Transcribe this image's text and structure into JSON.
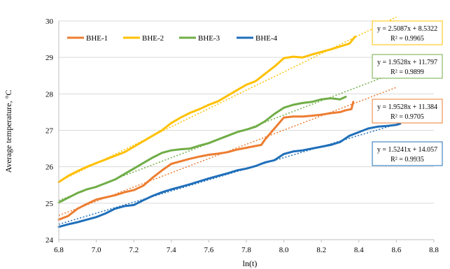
{
  "chart_data": {
    "type": "line",
    "xlabel": "ln(t)",
    "ylabel": "Average temperature, °C",
    "xlim": [
      6.8,
      8.8
    ],
    "ylim": [
      24,
      30
    ],
    "x_ticks": [
      "6.8",
      "7.0",
      "7.2",
      "7.4",
      "7.6",
      "7.8",
      "8.0",
      "8.2",
      "8.4",
      "8.6",
      "8.8"
    ],
    "y_ticks": [
      "24",
      "25",
      "26",
      "27",
      "28",
      "29",
      "30"
    ],
    "grid": "horizontal",
    "legend_position": "top-left",
    "series": [
      {
        "name": "BHE-1",
        "color": "#ED7D31",
        "x": [
          6.8,
          6.85,
          6.9,
          6.95,
          7.0,
          7.05,
          7.1,
          7.15,
          7.2,
          7.25,
          7.3,
          7.35,
          7.4,
          7.45,
          7.5,
          7.55,
          7.6,
          7.65,
          7.7,
          7.75,
          7.8,
          7.85,
          7.88,
          7.9,
          7.95,
          8.0,
          8.05,
          8.1,
          8.15,
          8.2,
          8.25,
          8.3,
          8.33,
          8.36,
          8.37
        ],
        "y": [
          24.55,
          24.65,
          24.85,
          24.98,
          25.1,
          25.16,
          25.22,
          25.3,
          25.36,
          25.48,
          25.7,
          25.9,
          26.08,
          26.15,
          26.22,
          26.28,
          26.33,
          26.36,
          26.4,
          26.47,
          26.52,
          26.57,
          26.6,
          26.75,
          27.05,
          27.35,
          27.38,
          27.38,
          27.4,
          27.43,
          27.47,
          27.5,
          27.55,
          27.58,
          27.78
        ],
        "trendline": {
          "slope": 1.9528,
          "intercept": 11.384,
          "r2": 0.9705,
          "x_range": [
            6.8,
            8.6
          ]
        }
      },
      {
        "name": "BHE-2",
        "color": "#FFC000",
        "x": [
          6.8,
          6.85,
          6.9,
          6.95,
          7.0,
          7.05,
          7.1,
          7.15,
          7.2,
          7.25,
          7.3,
          7.35,
          7.4,
          7.45,
          7.5,
          7.55,
          7.6,
          7.65,
          7.7,
          7.75,
          7.8,
          7.85,
          7.9,
          7.95,
          8.0,
          8.05,
          8.1,
          8.15,
          8.2,
          8.25,
          8.3,
          8.35,
          8.38
        ],
        "y": [
          25.58,
          25.75,
          25.88,
          26.0,
          26.1,
          26.2,
          26.3,
          26.4,
          26.55,
          26.7,
          26.85,
          27.0,
          27.2,
          27.35,
          27.48,
          27.58,
          27.7,
          27.8,
          27.95,
          28.1,
          28.25,
          28.35,
          28.55,
          28.75,
          28.98,
          29.02,
          29.0,
          29.08,
          29.15,
          29.22,
          29.3,
          29.38,
          29.57
        ],
        "trendline": {
          "slope": 2.5087,
          "intercept": 8.5322,
          "r2": 0.9965,
          "x_range": [
            6.8,
            8.6
          ]
        }
      },
      {
        "name": "BHE-3",
        "color": "#70AD47",
        "x": [
          6.8,
          6.85,
          6.9,
          6.95,
          7.0,
          7.05,
          7.1,
          7.15,
          7.2,
          7.25,
          7.3,
          7.35,
          7.4,
          7.45,
          7.5,
          7.55,
          7.6,
          7.65,
          7.7,
          7.75,
          7.8,
          7.85,
          7.9,
          7.95,
          8.0,
          8.05,
          8.1,
          8.15,
          8.2,
          8.25,
          8.3,
          8.33
        ],
        "y": [
          25.02,
          25.15,
          25.28,
          25.38,
          25.45,
          25.55,
          25.65,
          25.8,
          25.95,
          26.1,
          26.25,
          26.38,
          26.45,
          26.48,
          26.5,
          26.58,
          26.65,
          26.75,
          26.85,
          26.95,
          27.02,
          27.1,
          27.25,
          27.45,
          27.62,
          27.7,
          27.75,
          27.78,
          27.85,
          27.88,
          27.85,
          27.92
        ],
        "trendline": {
          "slope": 1.9528,
          "intercept": 11.797,
          "r2": 0.9899,
          "x_range": [
            6.8,
            8.6
          ]
        }
      },
      {
        "name": "BHE-4",
        "color": "#1F6FBA",
        "x": [
          6.8,
          6.85,
          6.9,
          6.95,
          7.0,
          7.05,
          7.1,
          7.15,
          7.2,
          7.25,
          7.3,
          7.35,
          7.4,
          7.45,
          7.5,
          7.55,
          7.6,
          7.65,
          7.7,
          7.75,
          7.8,
          7.85,
          7.9,
          7.95,
          8.0,
          8.05,
          8.1,
          8.15,
          8.2,
          8.25,
          8.3,
          8.35,
          8.4,
          8.45,
          8.5,
          8.55,
          8.6,
          8.62
        ],
        "y": [
          24.35,
          24.42,
          24.48,
          24.55,
          24.62,
          24.72,
          24.85,
          24.92,
          24.95,
          25.08,
          25.2,
          25.3,
          25.38,
          25.45,
          25.52,
          25.6,
          25.68,
          25.75,
          25.82,
          25.9,
          25.95,
          26.02,
          26.12,
          26.18,
          26.35,
          26.42,
          26.45,
          26.5,
          26.55,
          26.6,
          26.68,
          26.85,
          26.95,
          27.05,
          27.1,
          27.12,
          27.15,
          27.18
        ],
        "trendline": {
          "slope": 1.5241,
          "intercept": 14.057,
          "r2": 0.9935,
          "x_range": [
            6.8,
            8.6
          ]
        }
      }
    ],
    "equation_labels": [
      {
        "series": "BHE-2",
        "equation": "y = 2.5087x   + 8.5322",
        "r2": "R² = 0.9965"
      },
      {
        "series": "BHE-3",
        "equation": "y = 1.9528x   + 11.797",
        "r2": "R² = 0.9899"
      },
      {
        "series": "BHE-1",
        "equation": "y = 1.9528x   + 11.384",
        "r2": "R² = 0.9705"
      },
      {
        "series": "BHE-4",
        "equation": "y = 1.5241x   + 14.057",
        "r2": "R² = 0.9935"
      }
    ]
  }
}
